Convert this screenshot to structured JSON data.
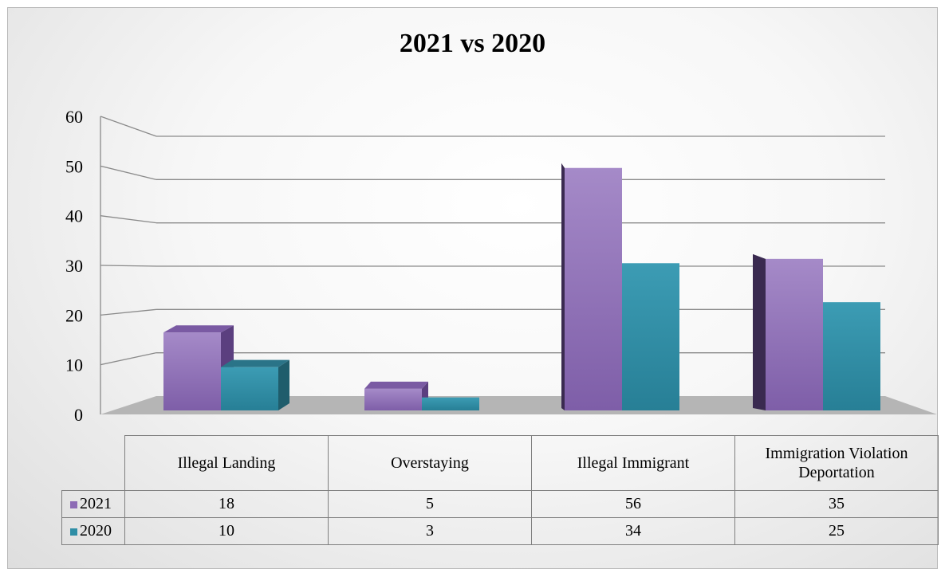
{
  "chart_data": {
    "type": "bar",
    "title": "2021 vs 2020",
    "categories": [
      "Illegal Landing",
      "Overstaying",
      "Illegal Immigrant",
      "Immigration Violation Deportation"
    ],
    "category_lines": [
      [
        "Illegal Landing"
      ],
      [
        "Overstaying"
      ],
      [
        "Illegal Immigrant"
      ],
      [
        "Immigration Violation",
        "Deportation"
      ]
    ],
    "series": [
      {
        "name": "2021",
        "values": [
          18,
          5,
          56,
          35
        ],
        "color": "#8d6bb5"
      },
      {
        "name": "2020",
        "values": [
          10,
          3,
          34,
          25
        ],
        "color": "#2f8ea6"
      }
    ],
    "ylim": [
      0,
      60
    ],
    "yticks": [
      "0",
      "10",
      "20",
      "30",
      "40",
      "50",
      "60"
    ],
    "grid": true,
    "legend": "data-table"
  }
}
